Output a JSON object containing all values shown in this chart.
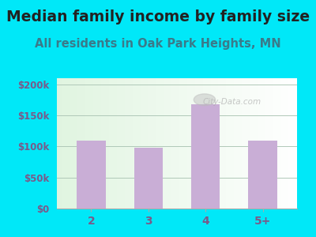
{
  "title": "Median family income by family size",
  "subtitle": "All residents in Oak Park Heights, MN",
  "categories": [
    "2",
    "3",
    "4",
    "5+"
  ],
  "values": [
    110000,
    98000,
    168000,
    110000
  ],
  "bar_color": "#c9aed6",
  "title_fontsize": 13.5,
  "subtitle_fontsize": 10.5,
  "ylabel_ticks": [
    "$0",
    "$50k",
    "$100k",
    "$150k",
    "$200k"
  ],
  "ytick_values": [
    0,
    50000,
    100000,
    150000,
    200000
  ],
  "ylim": [
    0,
    210000
  ],
  "bg_outer": "#00e8f8",
  "watermark": "City-Data.com",
  "title_color": "#222222",
  "subtitle_color": "#3a7a8a",
  "tick_color": "#7a5a8a",
  "grid_color": "#b0c8b8"
}
